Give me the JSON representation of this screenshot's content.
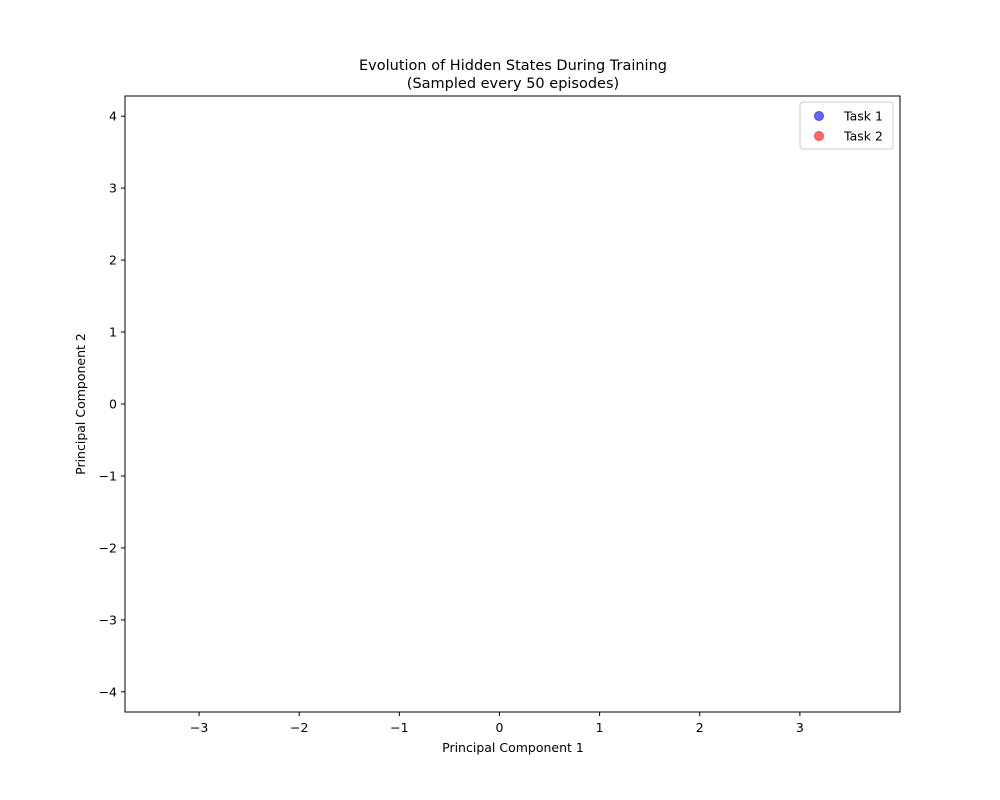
{
  "chart_data": {
    "type": "scatter",
    "title": "Evolution of Hidden States During Training",
    "subtitle": "(Sampled every 50 episodes)",
    "xlabel": "Principal Component 1",
    "ylabel": "Principal Component 2",
    "xlim": [
      -3.74,
      4.0
    ],
    "ylim": [
      -4.28,
      4.28
    ],
    "x_ticks": [
      -3,
      -2,
      -1,
      0,
      1,
      2,
      3
    ],
    "y_ticks": [
      -4,
      -3,
      -2,
      -1,
      0,
      1,
      2,
      3,
      4
    ],
    "x_tick_labels": [
      "−3",
      "−2",
      "−1",
      "0",
      "1",
      "2",
      "3"
    ],
    "y_tick_labels": [
      "−4",
      "−3",
      "−2",
      "−1",
      "0",
      "1",
      "2",
      "3",
      "4"
    ],
    "grid": false,
    "legend_position": "top-right",
    "series": [
      {
        "name": "Task 1",
        "color": "#0000ff",
        "x": [],
        "y": []
      },
      {
        "name": "Task 2",
        "color": "#ff0000",
        "x": [],
        "y": []
      }
    ]
  }
}
